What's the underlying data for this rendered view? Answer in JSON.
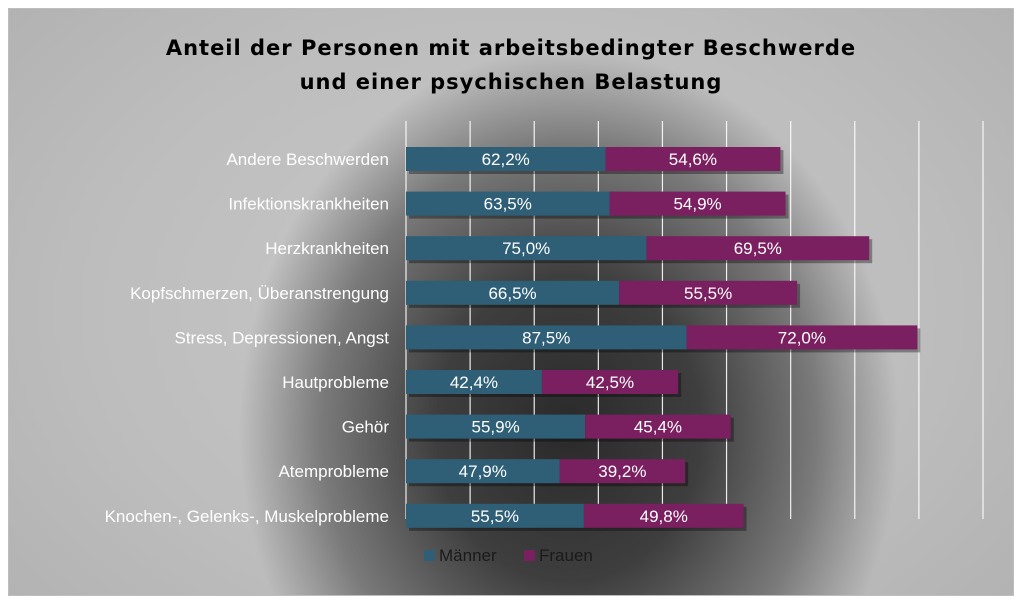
{
  "chart_data": {
    "type": "bar",
    "orientation": "horizontal",
    "stacked": true,
    "title": [
      "Anteil der Personen mit arbeitsbedingter Beschwerde",
      "und einer psychischen Belastung"
    ],
    "categories": [
      "Andere Beschwerden",
      "Infektionskrankheiten",
      "Herzkrankheiten",
      "Kopfschmerzen, Überanstrengung",
      "Stress, Depressionen, Angst",
      "Hautprobleme",
      "Gehör",
      "Atemprobleme",
      "Knochen-, Gelenks-, Muskelprobleme"
    ],
    "series": [
      {
        "name": "Männer",
        "color": "#2e5f77",
        "values": [
          62.2,
          63.5,
          75.0,
          66.5,
          87.5,
          42.4,
          55.9,
          47.9,
          55.5
        ],
        "labels": [
          "62,2%",
          "63,5%",
          "75,0%",
          "66,5%",
          "87,5%",
          "42,4%",
          "55,9%",
          "47,9%",
          "55,5%"
        ]
      },
      {
        "name": "Frauen",
        "color": "#7a1f5f",
        "values": [
          54.6,
          54.9,
          69.5,
          55.5,
          72.0,
          42.5,
          45.4,
          39.2,
          49.8
        ],
        "labels": [
          "54,6%",
          "54,9%",
          "69,5%",
          "55,5%",
          "72,0%",
          "42,5%",
          "45,4%",
          "39,2%",
          "49,8%"
        ]
      }
    ],
    "xlim": [
      0,
      180
    ],
    "grid": true,
    "legend_position": "bottom"
  }
}
